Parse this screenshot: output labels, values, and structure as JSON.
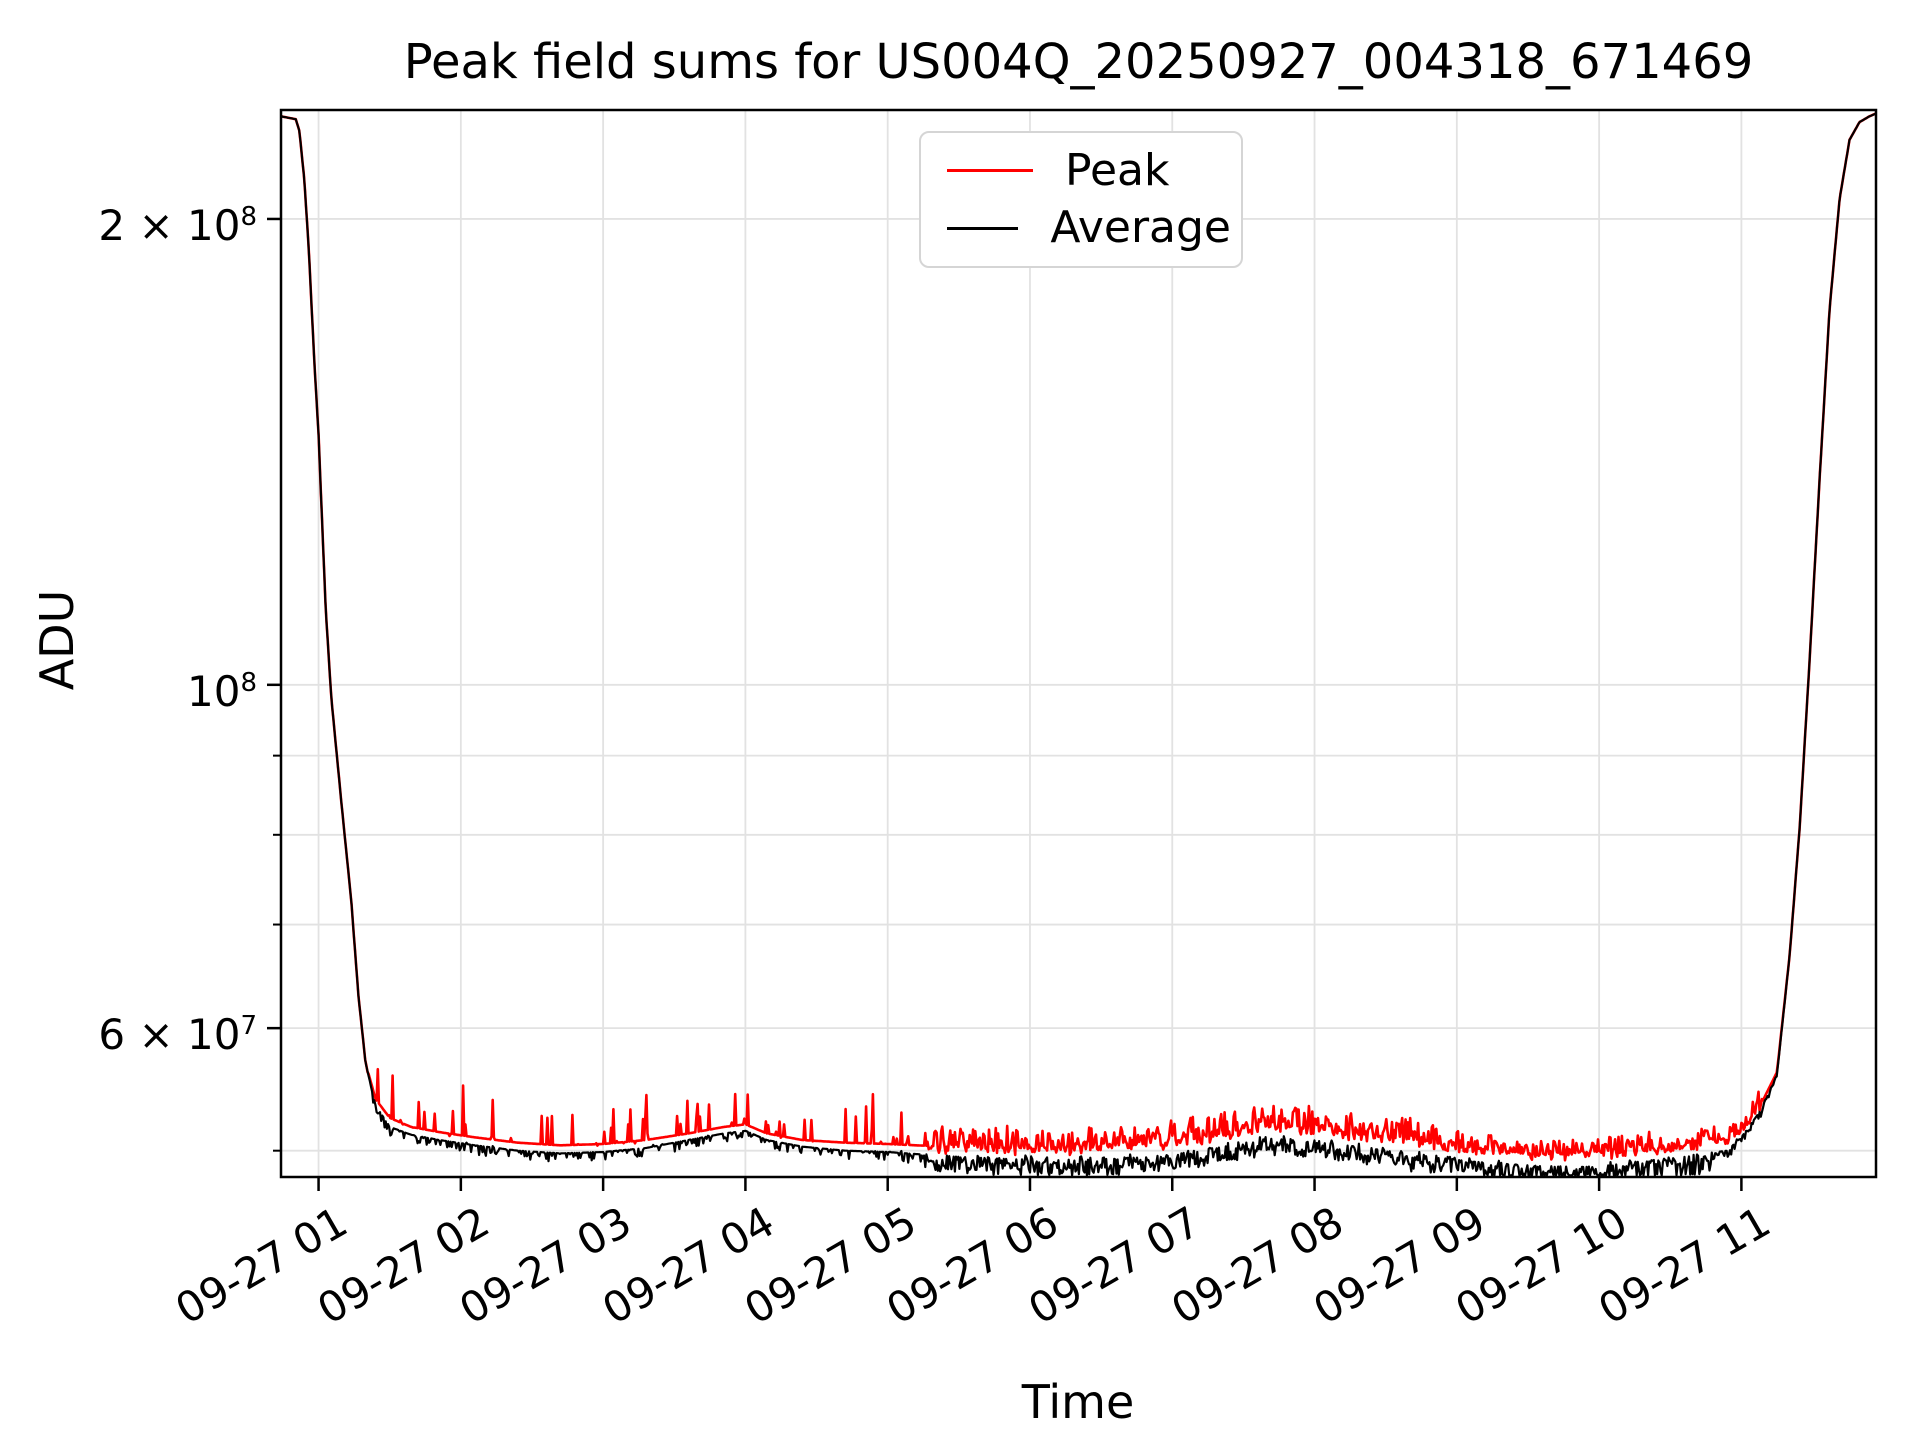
{
  "chart_data": {
    "type": "line",
    "title": "Peak field sums for US004Q_20250927_004318_671469",
    "xlabel": "Time",
    "ylabel": "ADU",
    "yscale": "log",
    "grid": true,
    "legend_position": "upper center",
    "xlim_hours": [
      0.736,
      11.946
    ],
    "ylim": [
      48080000.0,
      235200000.0
    ],
    "xticks": [
      {
        "hour": 1,
        "label": "09-27 01"
      },
      {
        "hour": 2,
        "label": "09-27 02"
      },
      {
        "hour": 3,
        "label": "09-27 03"
      },
      {
        "hour": 4,
        "label": "09-27 04"
      },
      {
        "hour": 5,
        "label": "09-27 05"
      },
      {
        "hour": 6,
        "label": "09-27 06"
      },
      {
        "hour": 7,
        "label": "09-27 07"
      },
      {
        "hour": 8,
        "label": "09-27 08"
      },
      {
        "hour": 9,
        "label": "09-27 09"
      },
      {
        "hour": 10,
        "label": "09-27 10"
      },
      {
        "hour": 11,
        "label": "09-27 11"
      }
    ],
    "yticks": [
      {
        "value": 60000000.0,
        "label": "6 × 10^7"
      },
      {
        "value": 100000000.0,
        "label": "10^8"
      },
      {
        "value": 200000000.0,
        "label": "2 × 10^8"
      }
    ],
    "yticks_minor": [
      50000000.0,
      70000000.0,
      80000000.0,
      90000000.0
    ],
    "grid_color": "#e2e2e2",
    "series": [
      {
        "name": "Peak",
        "color": "#ff0000",
        "seed": 7,
        "points": [
          [
            0.736,
            233000000.0
          ],
          [
            0.84,
            232000000.0
          ],
          [
            0.865,
            228000000.0
          ],
          [
            0.9,
            212000000.0
          ],
          [
            0.93,
            192000000.0
          ],
          [
            0.97,
            162000000.0
          ],
          [
            1.0,
            145000000.0
          ],
          [
            1.05,
            112000000.0
          ],
          [
            1.09,
            98000000.0
          ],
          [
            1.16,
            84000000.0
          ],
          [
            1.23,
            72500000.0
          ],
          [
            1.28,
            63000000.0
          ],
          [
            1.33,
            57000000.0
          ],
          [
            1.4,
            54000000.0
          ],
          [
            1.5,
            52500000.0
          ],
          [
            1.65,
            51800000.0
          ],
          [
            1.85,
            51400000.0
          ],
          [
            2.1,
            51000000.0
          ],
          [
            2.4,
            50600000.0
          ],
          [
            2.7,
            50400000.0
          ],
          [
            3.0,
            50500000.0
          ],
          [
            3.3,
            50800000.0
          ],
          [
            3.6,
            51300000.0
          ],
          [
            3.85,
            51800000.0
          ],
          [
            4.0,
            52000000.0
          ],
          [
            4.15,
            51300000.0
          ],
          [
            4.4,
            50800000.0
          ],
          [
            4.7,
            50600000.0
          ],
          [
            5.0,
            50500000.0
          ],
          [
            5.4,
            50300000.0
          ],
          [
            5.8,
            50200000.0
          ],
          [
            6.2,
            50200000.0
          ],
          [
            6.6,
            50400000.0
          ],
          [
            7.0,
            50700000.0
          ],
          [
            7.35,
            51300000.0
          ],
          [
            7.7,
            51900000.0
          ],
          [
            7.95,
            51700000.0
          ],
          [
            8.3,
            51300000.0
          ],
          [
            8.7,
            50800000.0
          ],
          [
            9.1,
            50200000.0
          ],
          [
            9.5,
            49800000.0
          ],
          [
            9.9,
            49700000.0
          ],
          [
            10.3,
            50000000.0
          ],
          [
            10.6,
            50400000.0
          ],
          [
            10.9,
            50800000.0
          ],
          [
            11.0,
            51500000.0
          ],
          [
            11.13,
            53400000.0
          ],
          [
            11.25,
            56200000.0
          ],
          [
            11.34,
            67000000.0
          ],
          [
            11.41,
            81000000.0
          ],
          [
            11.48,
            104000000.0
          ],
          [
            11.55,
            136000000.0
          ],
          [
            11.62,
            175000000.0
          ],
          [
            11.69,
            206000000.0
          ],
          [
            11.76,
            225000000.0
          ],
          [
            11.83,
            231000000.0
          ],
          [
            11.9,
            233000000.0
          ],
          [
            11.946,
            234000000.0
          ]
        ],
        "noise": [
          {
            "from": 1.34,
            "to": 5.25,
            "density": 0.17,
            "up": 0.08,
            "down": 0.004
          },
          {
            "from": 5.25,
            "to": 9.2,
            "density": 0.9,
            "up": 0.035,
            "down": 0.012
          },
          {
            "from": 9.2,
            "to": 11.15,
            "density": 0.9,
            "up": 0.028,
            "down": 0.01
          }
        ]
      },
      {
        "name": "Average",
        "color": "#000000",
        "seed": 13,
        "points": [
          [
            0.736,
            233000000.0
          ],
          [
            0.84,
            232000000.0
          ],
          [
            0.865,
            228000000.0
          ],
          [
            0.9,
            212000000.0
          ],
          [
            0.93,
            192000000.0
          ],
          [
            0.97,
            162000000.0
          ],
          [
            1.0,
            145000000.0
          ],
          [
            1.05,
            112000000.0
          ],
          [
            1.09,
            98000000.0
          ],
          [
            1.16,
            84000000.0
          ],
          [
            1.23,
            72500000.0
          ],
          [
            1.28,
            63000000.0
          ],
          [
            1.33,
            57000000.0
          ],
          [
            1.4,
            53500000.0
          ],
          [
            1.5,
            51800000.0
          ],
          [
            1.65,
            51200000.0
          ],
          [
            1.85,
            50800000.0
          ],
          [
            2.1,
            50400000.0
          ],
          [
            2.4,
            50000000.0
          ],
          [
            2.7,
            49800000.0
          ],
          [
            3.0,
            49900000.0
          ],
          [
            3.3,
            50200000.0
          ],
          [
            3.6,
            50800000.0
          ],
          [
            3.85,
            51300000.0
          ],
          [
            4.0,
            51500000.0
          ],
          [
            4.15,
            50800000.0
          ],
          [
            4.4,
            50300000.0
          ],
          [
            4.7,
            50000000.0
          ],
          [
            5.0,
            49900000.0
          ],
          [
            5.4,
            49600000.0
          ],
          [
            5.8,
            49400000.0
          ],
          [
            6.2,
            49300000.0
          ],
          [
            6.6,
            49400000.0
          ],
          [
            7.0,
            49700000.0
          ],
          [
            7.35,
            50300000.0
          ],
          [
            7.7,
            50900000.0
          ],
          [
            7.95,
            50700000.0
          ],
          [
            8.3,
            50300000.0
          ],
          [
            8.7,
            49700000.0
          ],
          [
            9.1,
            49200000.0
          ],
          [
            9.5,
            48900000.0
          ],
          [
            9.9,
            48800000.0
          ],
          [
            10.3,
            49200000.0
          ],
          [
            10.6,
            49600000.0
          ],
          [
            10.9,
            50000000.0
          ],
          [
            11.0,
            51000000.0
          ],
          [
            11.13,
            53000000.0
          ],
          [
            11.25,
            56000000.0
          ],
          [
            11.34,
            67000000.0
          ],
          [
            11.41,
            81000000.0
          ],
          [
            11.48,
            104000000.0
          ],
          [
            11.55,
            136000000.0
          ],
          [
            11.62,
            175000000.0
          ],
          [
            11.69,
            206000000.0
          ],
          [
            11.76,
            225000000.0
          ],
          [
            11.83,
            231000000.0
          ],
          [
            11.9,
            233000000.0
          ],
          [
            11.946,
            234000000.0
          ]
        ],
        "noise": [
          {
            "from": 1.36,
            "to": 5.25,
            "density": 0.38,
            "up": 0.004,
            "down": 0.014
          },
          {
            "from": 5.25,
            "to": 9.2,
            "density": 0.92,
            "up": 0.007,
            "down": 0.026
          },
          {
            "from": 9.2,
            "to": 10.8,
            "density": 0.92,
            "up": 0.005,
            "down": 0.03
          },
          {
            "from": 10.8,
            "to": 11.25,
            "density": 0.6,
            "up": 0.004,
            "down": 0.012
          }
        ]
      }
    ]
  }
}
